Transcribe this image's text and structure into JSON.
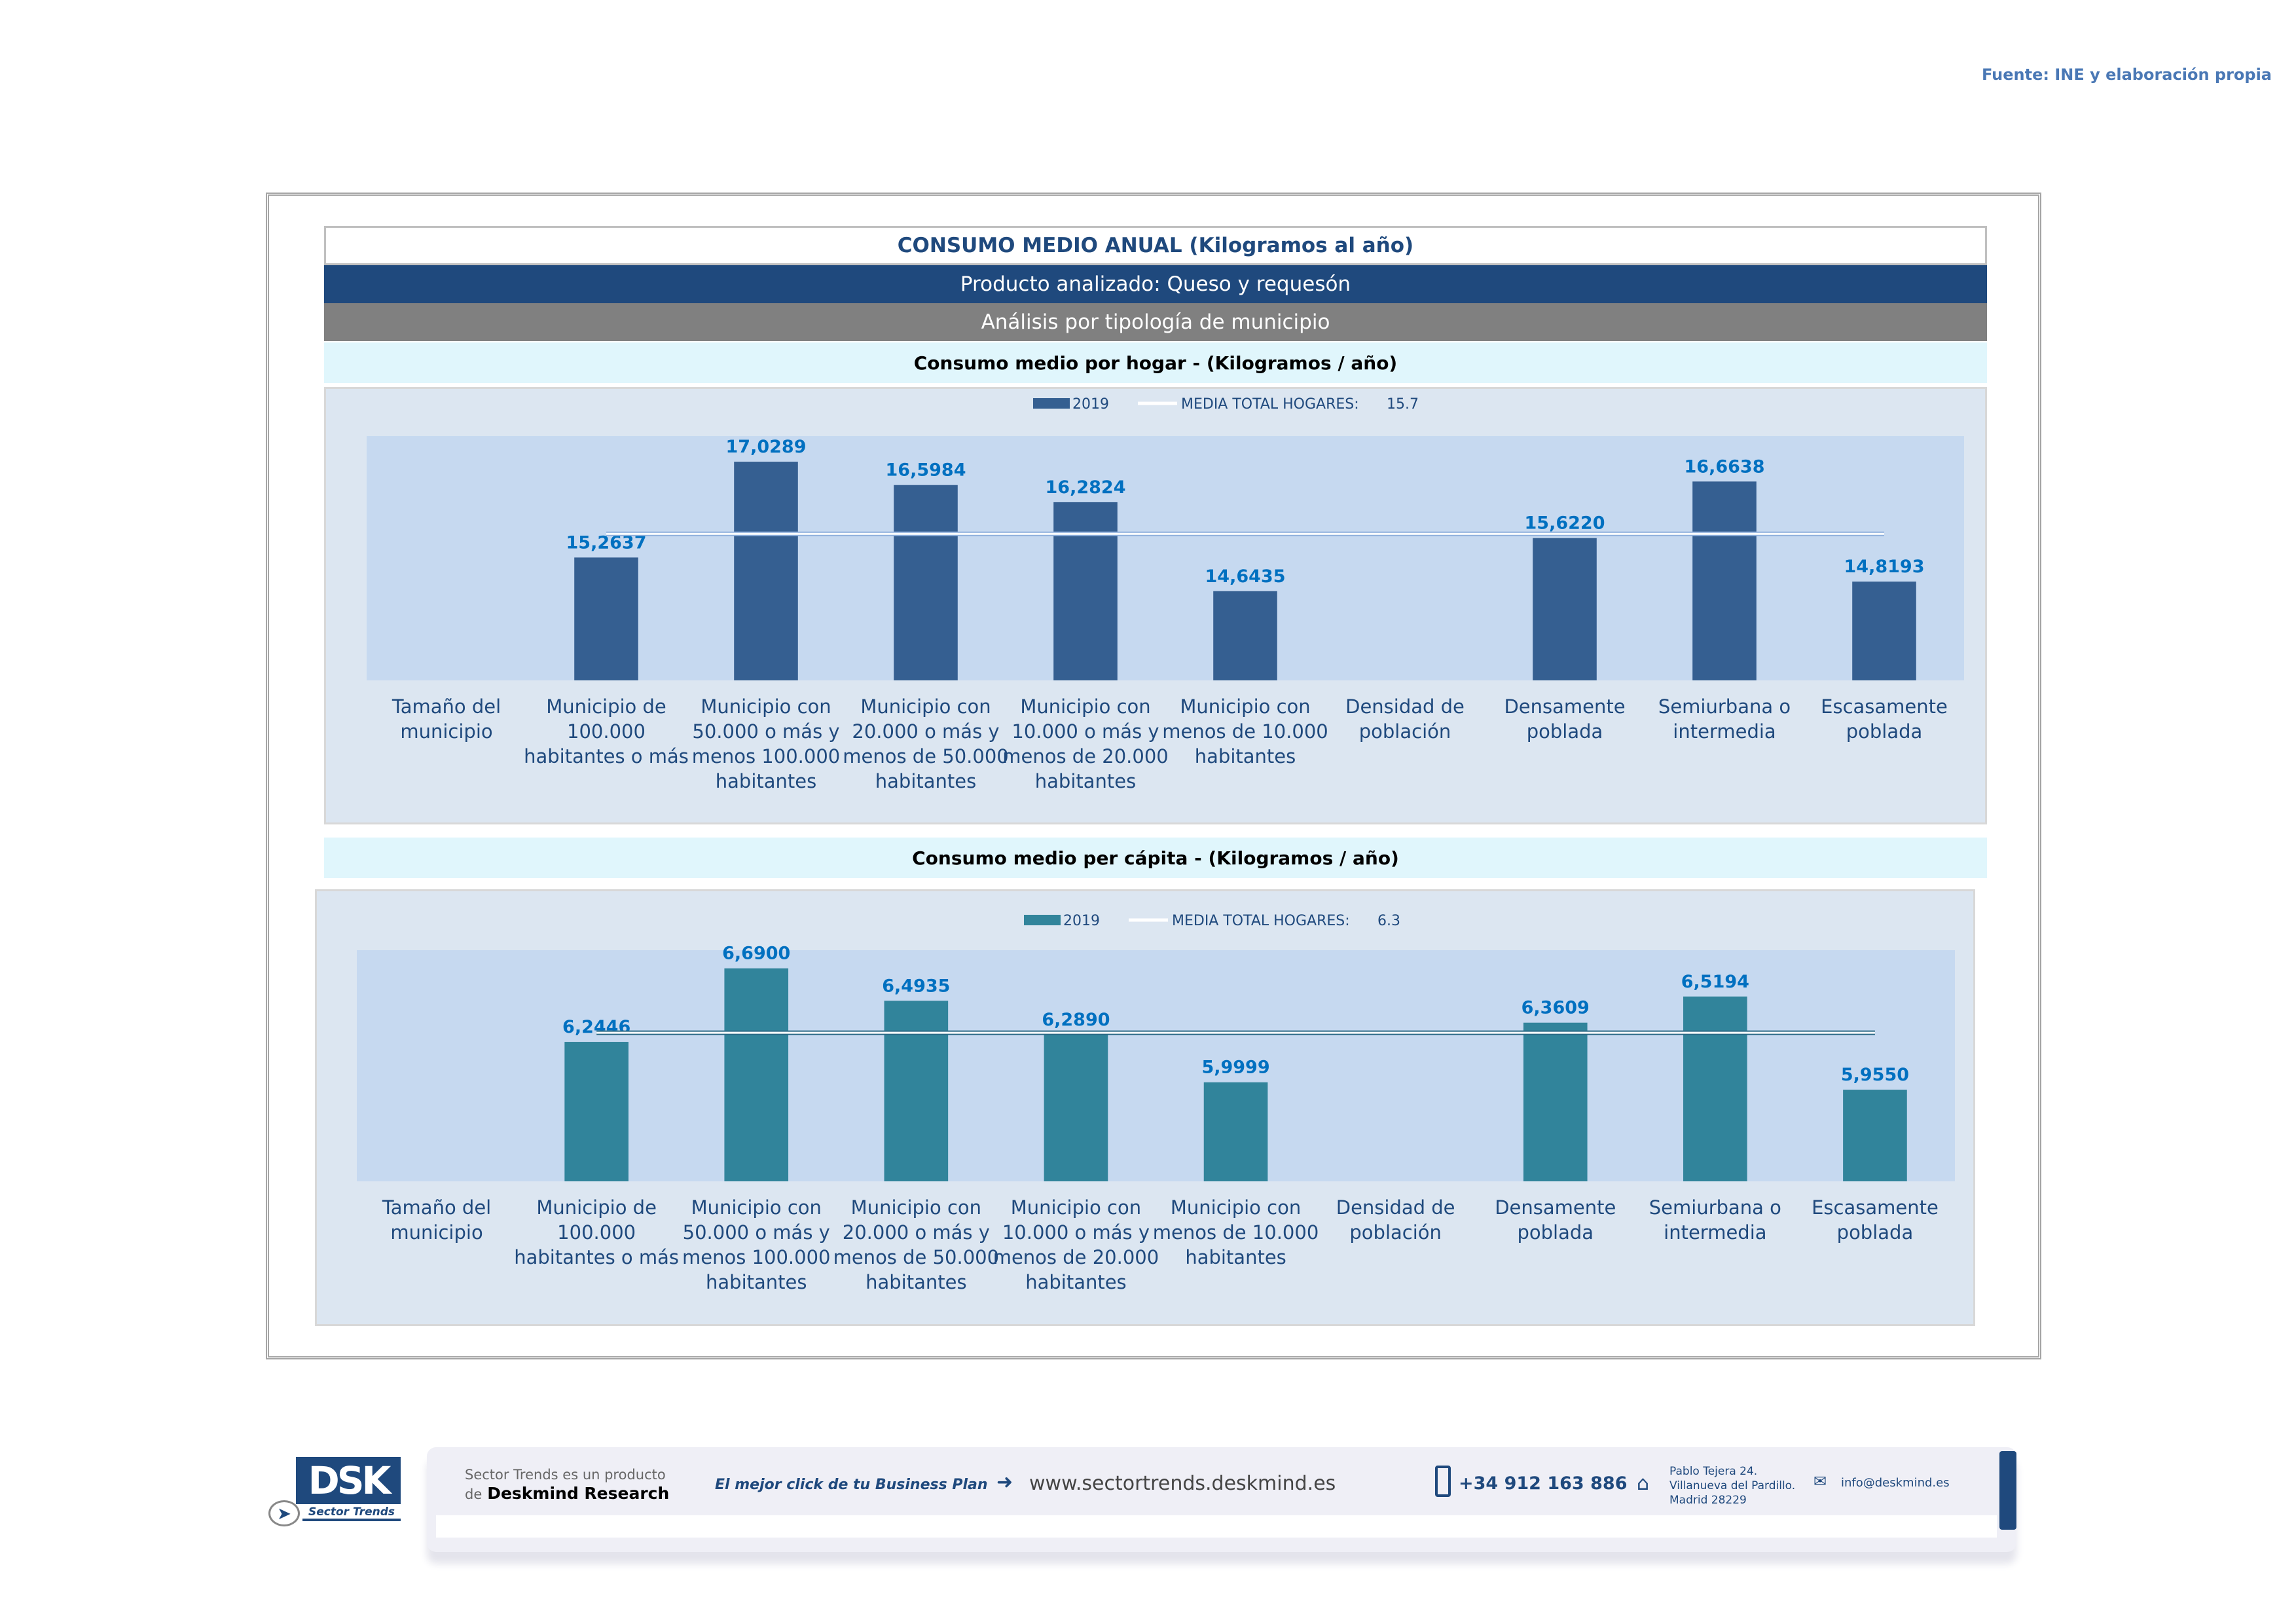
{
  "source": "Fuente: INE y elaboración propia",
  "header": {
    "title": "CONSUMO MEDIO ANUAL (Kilogramos al año)",
    "product": "Producto analizado: Queso y requesón",
    "analysis": "Análisis por tipología de municipio"
  },
  "colors": {
    "navy": "#1f497d",
    "bar1": "#355f91",
    "bar2": "#31849b",
    "plot_bg": "#c6d9f0",
    "panel_bg": "#dce6f1",
    "value_label": "#0070c0"
  },
  "chart_data": [
    {
      "type": "bar",
      "title": "Consumo medio por hogar -  (Kilogramos / año)",
      "legend": {
        "series": "2019",
        "mean": "MEDIA TOTAL  HOGARES:",
        "mean_value_label": "15.7",
        "placement": "top-center"
      },
      "mean": 15.7,
      "ylim": [
        13,
        17.5
      ],
      "categories": [
        "Tamaño del municipio",
        "Municipio de 100.000 habitantes o más",
        "Municipio con 50.000 o más y menos 100.000 habitantes",
        "Municipio con 20.000 o más y menos de 50.000 habitantes",
        "Municipio con 10.000 o más y menos de 20.000 habitantes",
        "Municipio con menos de 10.000 habitantes",
        "Densidad de población",
        "Densamente poblada",
        "Semiurbana o intermedia",
        "Escasamente poblada"
      ],
      "values": [
        null,
        15.2637,
        17.0289,
        16.5984,
        16.2824,
        14.6435,
        null,
        15.622,
        16.6638,
        14.8193
      ],
      "labels": [
        "",
        "15,2637",
        "17,0289",
        "16,5984",
        "16,2824",
        "14,6435",
        "",
        "15,6220",
        "16,6638",
        "14,8193"
      ]
    },
    {
      "type": "bar",
      "title": "Consumo medio per cápita -  (Kilogramos / año)",
      "legend": {
        "series": "2019",
        "mean": "MEDIA TOTAL  HOGARES:",
        "mean_value_label": "6.3",
        "placement": "top-center"
      },
      "mean": 6.3,
      "ylim": [
        5.4,
        6.8
      ],
      "categories": [
        "Tamaño del municipio",
        "Municipio de 100.000 habitantes o más",
        "Municipio con 50.000 o más y menos 100.000 habitantes",
        "Municipio con 20.000 o más y menos de 50.000 habitantes",
        "Municipio con 10.000 o más y menos de 20.000 habitantes",
        "Municipio con menos de 10.000 habitantes",
        "Densidad de población",
        "Densamente poblada",
        "Semiurbana o intermedia",
        "Escasamente poblada"
      ],
      "values": [
        null,
        6.2446,
        6.69,
        6.4935,
        6.289,
        5.9999,
        null,
        6.3609,
        6.5194,
        5.955
      ],
      "labels": [
        "",
        "6,2446",
        "6,6900",
        "6,4935",
        "6,2890",
        "5,9999",
        "",
        "6,3609",
        "6,5194",
        "5,9550"
      ]
    }
  ],
  "footer": {
    "logo": "DSK",
    "logo_sub": "Sector Trends",
    "product_line1": "Sector Trends es un producto",
    "product_line2_prefix": "de",
    "product_line2_brand": "Deskmind Research",
    "slogan": "El mejor click de tu Business Plan",
    "website": "www.sectortrends.deskmind.es",
    "phone": "+34 912 163 886",
    "address1": "Pablo Tejera 24.",
    "address2": "Villanueva del Pardillo.",
    "address3": "Madrid 28229",
    "email": "info@deskmind.es"
  }
}
